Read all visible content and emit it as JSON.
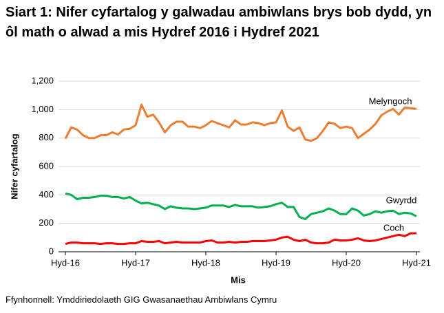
{
  "chart_data": {
    "type": "line",
    "title": "Siart 1: Nifer cyfartalog y galwadau ambiwlans brys bob dydd, yn ôl math o alwad a mis Hydref 2016 i Hydref 2021",
    "x_label": "Mis",
    "y_label": "Nifer cyfartalog",
    "source": "Ffynhonnell: Ymddiriedolaeth GIG Gwasanaethau Ambiwlans Cymru",
    "categories": [
      "Hyd-16",
      null,
      null,
      null,
      null,
      null,
      null,
      null,
      null,
      null,
      null,
      null,
      "Hyd-17",
      null,
      null,
      null,
      null,
      null,
      null,
      null,
      null,
      null,
      null,
      null,
      "Hyd-18",
      null,
      null,
      null,
      null,
      null,
      null,
      null,
      null,
      null,
      null,
      null,
      "Hyd-19",
      null,
      null,
      null,
      null,
      null,
      null,
      null,
      null,
      null,
      null,
      null,
      "Hyd-20",
      null,
      null,
      null,
      null,
      null,
      null,
      null,
      null,
      null,
      null,
      null,
      "Hyd-21"
    ],
    "ylim": [
      0,
      1200
    ],
    "yticks": [
      0,
      200,
      400,
      600,
      800,
      {
        "value": 1000,
        "label": "1,000"
      },
      {
        "value": 1200,
        "label": "1,200"
      }
    ],
    "grid": true,
    "series": [
      {
        "name": "Melyngoch",
        "color": "#ed7d31",
        "values": [
          795,
          875,
          860,
          820,
          800,
          800,
          820,
          820,
          840,
          825,
          860,
          865,
          890,
          1035,
          950,
          965,
          910,
          840,
          890,
          915,
          915,
          880,
          880,
          870,
          890,
          920,
          905,
          890,
          875,
          925,
          895,
          895,
          910,
          905,
          890,
          905,
          910,
          995,
          880,
          850,
          875,
          790,
          780,
          800,
          850,
          910,
          900,
          870,
          880,
          870,
          800,
          830,
          860,
          900,
          960,
          985,
          1005,
          965,
          1015,
          1010,
          1005
        ]
      },
      {
        "name": "Gwyrdd",
        "color": "#00b050",
        "values": [
          410,
          400,
          370,
          380,
          380,
          385,
          395,
          395,
          385,
          385,
          375,
          385,
          360,
          340,
          345,
          335,
          325,
          300,
          320,
          310,
          305,
          305,
          300,
          305,
          310,
          325,
          325,
          325,
          315,
          330,
          320,
          320,
          320,
          310,
          315,
          320,
          335,
          345,
          315,
          315,
          245,
          230,
          265,
          275,
          285,
          305,
          290,
          265,
          265,
          305,
          290,
          255,
          265,
          285,
          275,
          285,
          290,
          265,
          275,
          270,
          250
        ]
      },
      {
        "name": "Coch",
        "color": "#ff0000",
        "values": [
          55,
          65,
          65,
          60,
          60,
          60,
          55,
          60,
          60,
          55,
          55,
          60,
          60,
          75,
          70,
          70,
          75,
          60,
          65,
          70,
          65,
          65,
          65,
          65,
          75,
          80,
          65,
          65,
          70,
          65,
          70,
          70,
          75,
          75,
          75,
          80,
          85,
          100,
          105,
          85,
          75,
          85,
          65,
          60,
          60,
          65,
          85,
          80,
          80,
          85,
          95,
          80,
          75,
          80,
          90,
          100,
          110,
          120,
          110,
          130,
          130
        ]
      }
    ]
  }
}
